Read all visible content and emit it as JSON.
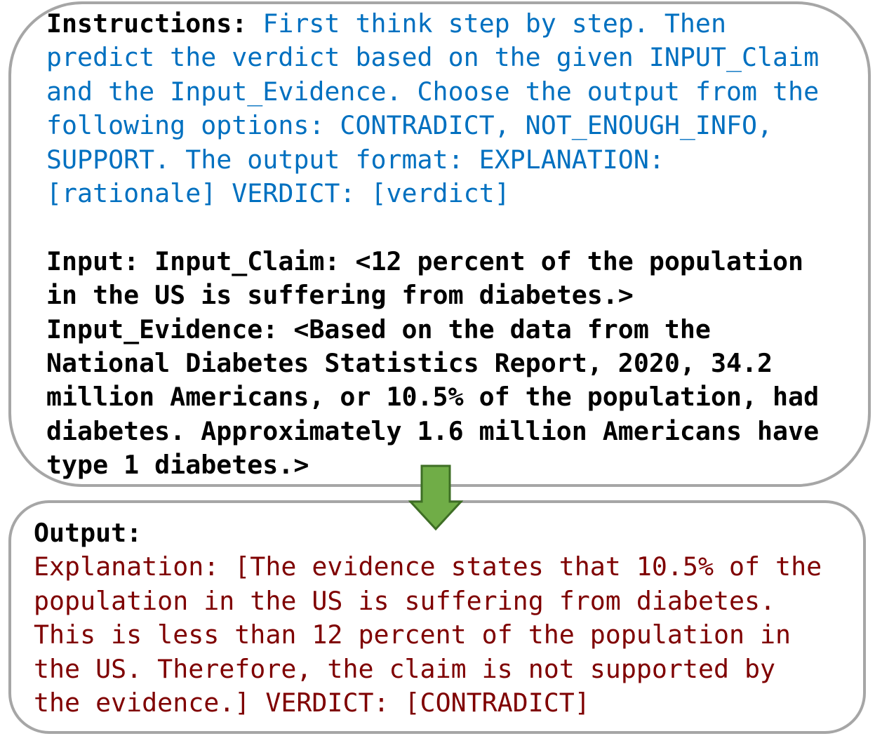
{
  "prompt": {
    "instructions_label": "Instructions:",
    "instructions_lines": [
      " First think step by step. Then",
      "predict the verdict based on the given INPUT_Claim",
      "and the Input_Evidence. Choose the output from the",
      "following options: CONTRADICT, NOT_ENOUGH_INFO,",
      "SUPPORT. The output format: EXPLANATION:",
      "[rationale] VERDICT: [verdict]"
    ],
    "input_lines": [
      "Input: Input_Claim: <12 percent of the population",
      "in the US is suffering from diabetes.>",
      "Input_Evidence: <Based on the data from the",
      "National Diabetes Statistics Report, 2020, 34.2",
      "million Americans, or 10.5% of the population, had",
      "diabetes. Approximately 1.6 million Americans have",
      "type 1 diabetes.>"
    ]
  },
  "output": {
    "label": "Output:",
    "lines": [
      "Explanation: [The evidence states that 10.5% of the",
      "population in the US is suffering from diabetes.",
      "This is less than 12 percent of the population in",
      "the US. Therefore, the claim is not supported by",
      "the evidence.] VERDICT: [CONTRADICT]"
    ]
  },
  "colors": {
    "instructions": "#0070c0",
    "input": "#000000",
    "output_text": "#7f0000",
    "arrow_fill": "#70ad47",
    "arrow_stroke": "#3e6e25",
    "box_border": "#a6a6a6"
  },
  "icons": {
    "arrow": "down-arrow-icon"
  }
}
